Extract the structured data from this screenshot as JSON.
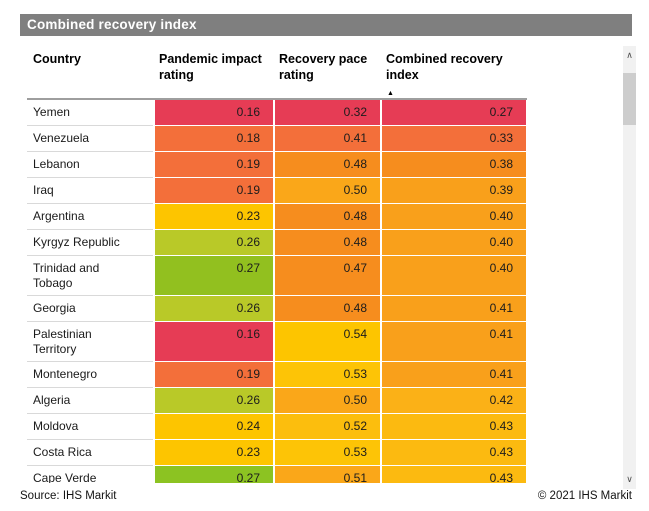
{
  "chart_data": {
    "type": "table",
    "title": "Combined recovery index",
    "columns": [
      "Country",
      "Pandemic impact rating",
      "Recovery pace rating",
      "Combined recovery index"
    ],
    "sorted_by": "Combined recovery index",
    "sort_direction": "ascending",
    "palette": {
      "crimson": "#e63c55",
      "redOrange": "#f36f3a",
      "darkOrange": "#f68d1e",
      "orange": "#f9a01b",
      "lightOrange": "#faa719",
      "amber": "#fbb117",
      "amberDeep": "#fcba10",
      "yellowAmber": "#fcbe0d",
      "yellowSoft": "#fdc406",
      "yellow": "#fdc500",
      "yellowGreen": "#b9c928",
      "green": "#92c01f",
      "brightGreen": "#8cc322"
    },
    "rows": [
      {
        "country": "Yemen",
        "display": "Yemen",
        "pandemic_impact_rating": 0.16,
        "recovery_pace_rating": 0.32,
        "combined_recovery_index": 0.27,
        "colors": [
          "crimson",
          "crimson",
          "crimson"
        ]
      },
      {
        "country": "Venezuela",
        "display": "Venezuela",
        "pandemic_impact_rating": 0.18,
        "recovery_pace_rating": 0.41,
        "combined_recovery_index": 0.33,
        "colors": [
          "redOrange",
          "redOrange",
          "redOrange"
        ]
      },
      {
        "country": "Lebanon",
        "display": "Lebanon",
        "pandemic_impact_rating": 0.19,
        "recovery_pace_rating": 0.48,
        "combined_recovery_index": 0.38,
        "colors": [
          "redOrange",
          "darkOrange",
          "darkOrange"
        ]
      },
      {
        "country": "Iraq",
        "display": "Iraq",
        "pandemic_impact_rating": 0.19,
        "recovery_pace_rating": 0.5,
        "combined_recovery_index": 0.39,
        "colors": [
          "redOrange",
          "lightOrange",
          "orange"
        ]
      },
      {
        "country": "Argentina",
        "display": "Argentina",
        "pandemic_impact_rating": 0.23,
        "recovery_pace_rating": 0.48,
        "combined_recovery_index": 0.4,
        "colors": [
          "yellow",
          "darkOrange",
          "orange"
        ]
      },
      {
        "country": "Kyrgyz Republic",
        "display": "Kyrgyz Republic",
        "pandemic_impact_rating": 0.26,
        "recovery_pace_rating": 0.48,
        "combined_recovery_index": 0.4,
        "colors": [
          "yellowGreen",
          "darkOrange",
          "orange"
        ]
      },
      {
        "country": "Trinidad and Tobago",
        "display": "Trinidad and\nTobago",
        "pandemic_impact_rating": 0.27,
        "recovery_pace_rating": 0.47,
        "combined_recovery_index": 0.4,
        "colors": [
          "green",
          "darkOrange",
          "orange"
        ]
      },
      {
        "country": "Georgia",
        "display": "Georgia",
        "pandemic_impact_rating": 0.26,
        "recovery_pace_rating": 0.48,
        "combined_recovery_index": 0.41,
        "colors": [
          "yellowGreen",
          "darkOrange",
          "orange"
        ]
      },
      {
        "country": "Palestinian Territory",
        "display": "Palestinian\nTerritory",
        "pandemic_impact_rating": 0.16,
        "recovery_pace_rating": 0.54,
        "combined_recovery_index": 0.41,
        "colors": [
          "crimson",
          "yellow",
          "orange"
        ]
      },
      {
        "country": "Montenegro",
        "display": "Montenegro",
        "pandemic_impact_rating": 0.19,
        "recovery_pace_rating": 0.53,
        "combined_recovery_index": 0.41,
        "colors": [
          "redOrange",
          "yellowSoft",
          "orange"
        ]
      },
      {
        "country": "Algeria",
        "display": "Algeria",
        "pandemic_impact_rating": 0.26,
        "recovery_pace_rating": 0.5,
        "combined_recovery_index": 0.42,
        "colors": [
          "yellowGreen",
          "lightOrange",
          "amber"
        ]
      },
      {
        "country": "Moldova",
        "display": "Moldova",
        "pandemic_impact_rating": 0.24,
        "recovery_pace_rating": 0.52,
        "combined_recovery_index": 0.43,
        "colors": [
          "yellow",
          "yellowAmber",
          "amberDeep"
        ]
      },
      {
        "country": "Costa Rica",
        "display": "Costa Rica",
        "pandemic_impact_rating": 0.23,
        "recovery_pace_rating": 0.53,
        "combined_recovery_index": 0.43,
        "colors": [
          "yellow",
          "yellowSoft",
          "amberDeep"
        ]
      },
      {
        "country": "Cape Verde",
        "display": "Cape Verde",
        "pandemic_impact_rating": 0.27,
        "recovery_pace_rating": 0.51,
        "combined_recovery_index": 0.43,
        "colors": [
          "brightGreen",
          "lightOrange",
          "amberDeep"
        ]
      }
    ]
  },
  "icons": {
    "sort_ascending": "▲",
    "scroll_up": "∧",
    "scroll_down": "∨"
  },
  "footer": {
    "source": "Source: IHS Markit",
    "copyright": "© 2021 IHS Markit"
  }
}
